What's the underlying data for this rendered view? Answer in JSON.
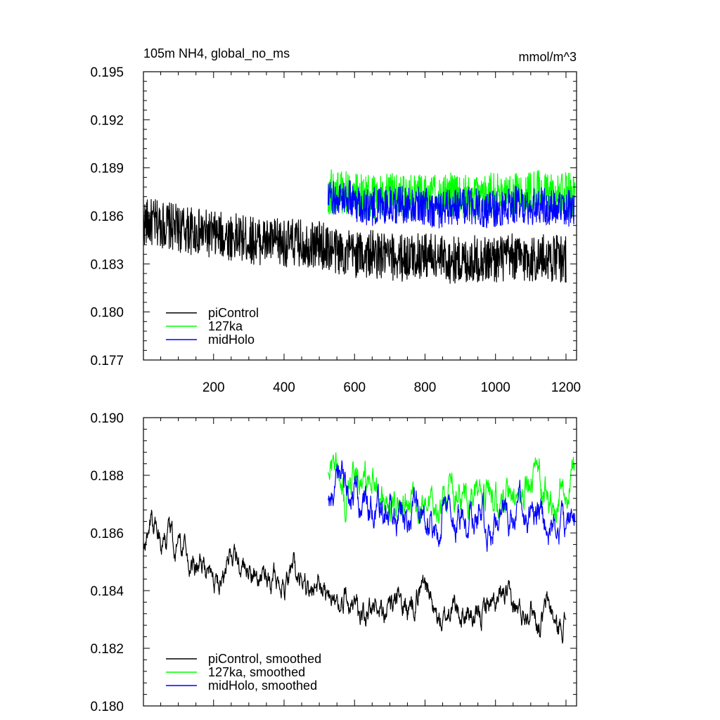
{
  "chart_data": [
    {
      "type": "line",
      "title": "105m NH4, global_no_ms",
      "units": "mmol/m^3",
      "xlim": [
        1,
        1230
      ],
      "ylim": [
        0.177,
        0.195
      ],
      "x_ticks": [
        200,
        400,
        600,
        800,
        1000,
        1200
      ],
      "x_tick_labels": [
        "200",
        "400",
        "600",
        "800",
        "1000",
        "1200"
      ],
      "y_ticks": [
        0.177,
        0.18,
        0.183,
        0.186,
        0.189,
        0.192,
        0.195
      ],
      "y_tick_labels": [
        "0.177",
        "0.180",
        "0.183",
        "0.186",
        "0.189",
        "0.192",
        "0.195"
      ],
      "grid": false,
      "legend_position": "bottom-left",
      "series": [
        {
          "name": "piControl",
          "color": "#000000",
          "x": [
            1,
            50,
            100,
            150,
            200,
            250,
            300,
            350,
            400,
            450,
            500,
            550,
            600,
            650,
            700,
            750,
            800,
            850,
            900,
            950,
            1000,
            1050,
            1100,
            1150,
            1200
          ],
          "values": [
            0.1856,
            0.1855,
            0.1852,
            0.185,
            0.1848,
            0.1847,
            0.1845,
            0.1844,
            0.1843,
            0.1843,
            0.1842,
            0.1838,
            0.1836,
            0.1836,
            0.1834,
            0.1834,
            0.1836,
            0.1833,
            0.1832,
            0.1833,
            0.1833,
            0.1834,
            0.1833,
            0.1834,
            0.1833
          ],
          "amplitude": 0.0015
        },
        {
          "name": "127ka",
          "color": "#00ff00",
          "x": [
            525,
            575,
            625,
            675,
            725,
            775,
            825,
            875,
            925,
            975,
            1025,
            1075,
            1125,
            1175,
            1225
          ],
          "values": [
            0.1875,
            0.1874,
            0.1872,
            0.1872,
            0.1873,
            0.1872,
            0.1872,
            0.1873,
            0.1872,
            0.1873,
            0.1874,
            0.1874,
            0.1875,
            0.1872,
            0.1874
          ],
          "amplitude": 0.0014
        },
        {
          "name": "midHolo",
          "color": "#0000ff",
          "x": [
            525,
            575,
            625,
            675,
            725,
            775,
            825,
            875,
            925,
            975,
            1025,
            1075,
            1125,
            1175,
            1225
          ],
          "values": [
            0.187,
            0.1872,
            0.1866,
            0.1866,
            0.1867,
            0.1868,
            0.1864,
            0.1865,
            0.1866,
            0.1864,
            0.1866,
            0.1867,
            0.1866,
            0.1864,
            0.1866
          ],
          "amplitude": 0.0012
        }
      ]
    },
    {
      "type": "line",
      "title": "",
      "xlim": [
        1,
        1230
      ],
      "ylim": [
        0.18,
        0.19
      ],
      "x_ticks": [
        200,
        400,
        600,
        800,
        1000,
        1200
      ],
      "y_ticks": [
        0.18,
        0.182,
        0.184,
        0.186,
        0.188,
        0.19
      ],
      "y_tick_labels": [
        "0.180",
        "0.182",
        "0.184",
        "0.186",
        "0.188",
        "0.190"
      ],
      "grid": false,
      "legend_position": "bottom-left",
      "series": [
        {
          "name": "piControl, smoothed",
          "color": "#000000",
          "x": [
            1,
            25,
            50,
            75,
            100,
            125,
            150,
            175,
            200,
            225,
            250,
            275,
            300,
            325,
            350,
            375,
            400,
            425,
            450,
            475,
            500,
            525,
            550,
            575,
            600,
            625,
            650,
            675,
            700,
            725,
            750,
            775,
            800,
            825,
            850,
            875,
            900,
            925,
            950,
            975,
            1000,
            1025,
            1050,
            1075,
            1100,
            1125,
            1150,
            1175,
            1200
          ],
          "values": [
            0.1855,
            0.1862,
            0.1858,
            0.186,
            0.1853,
            0.1852,
            0.1848,
            0.1846,
            0.1845,
            0.1844,
            0.1855,
            0.1848,
            0.1847,
            0.1842,
            0.1843,
            0.1845,
            0.1842,
            0.1848,
            0.1842,
            0.1838,
            0.1842,
            0.1838,
            0.1835,
            0.1838,
            0.1835,
            0.1832,
            0.1833,
            0.1836,
            0.1832,
            0.1836,
            0.1834,
            0.1838,
            0.1845,
            0.1832,
            0.1828,
            0.1835,
            0.1832,
            0.1832,
            0.1828,
            0.1836,
            0.1833,
            0.1838,
            0.1834,
            0.1832,
            0.1836,
            0.1828,
            0.1836,
            0.1826,
            0.1831
          ],
          "amplitude": 0.0003
        },
        {
          "name": "127ka, smoothed",
          "color": "#00ff00",
          "x": [
            525,
            550,
            575,
            600,
            625,
            650,
            675,
            700,
            725,
            750,
            775,
            800,
            825,
            850,
            875,
            900,
            925,
            950,
            975,
            1000,
            1025,
            1050,
            1075,
            1100,
            1125,
            1150,
            1175,
            1200,
            1225
          ],
          "values": [
            0.1884,
            0.1885,
            0.1872,
            0.188,
            0.1876,
            0.1878,
            0.1873,
            0.1869,
            0.1872,
            0.1868,
            0.1871,
            0.1871,
            0.1866,
            0.1872,
            0.1874,
            0.1872,
            0.1872,
            0.1874,
            0.1876,
            0.1871,
            0.1872,
            0.1876,
            0.1875,
            0.1882,
            0.1878,
            0.1871,
            0.1872,
            0.1874,
            0.1885
          ],
          "amplitude": 0.0004
        },
        {
          "name": "midHolo, smoothed",
          "color": "#0000ff",
          "x": [
            525,
            550,
            575,
            600,
            625,
            650,
            675,
            700,
            725,
            750,
            775,
            800,
            825,
            850,
            875,
            900,
            925,
            950,
            975,
            1000,
            1025,
            1050,
            1075,
            1100,
            1125,
            1150,
            1175,
            1200,
            1225
          ],
          "values": [
            0.1872,
            0.1878,
            0.1875,
            0.1872,
            0.1866,
            0.1866,
            0.1868,
            0.1867,
            0.1868,
            0.1862,
            0.1868,
            0.1862,
            0.1858,
            0.1866,
            0.1864,
            0.1866,
            0.1864,
            0.1866,
            0.1864,
            0.1862,
            0.1866,
            0.1862,
            0.1868,
            0.1866,
            0.1864,
            0.1864,
            0.1862,
            0.1862,
            0.1868
          ],
          "amplitude": 0.0004
        }
      ]
    }
  ]
}
